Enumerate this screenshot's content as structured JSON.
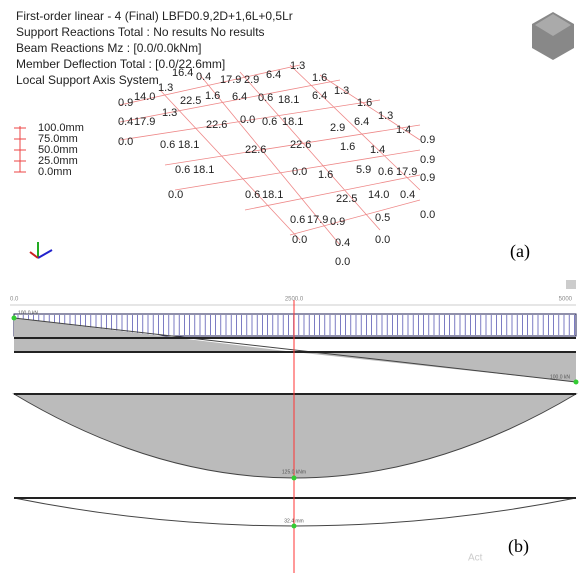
{
  "panel_a": {
    "header": [
      "First-order linear - 4 (Final) LBFD0.9,2D+1,6L+0,5Lr",
      "Support Reactions Total : No results No results",
      "Beam Reactions Mz : [0.0/0.0kNm]",
      "Member Deflection Total : [0.0/22.6mm]",
      "Local Support Axis System"
    ],
    "legend": [
      "100.0mm",
      "75.0mm",
      "50.0mm",
      "25.0mm",
      "0.0mm"
    ],
    "node_labels": [
      "0.9",
      "14.0",
      "1.3",
      "16.4",
      "0.4",
      "17.9",
      "2.9",
      "6.4",
      "1.3",
      "1.6",
      "0.4",
      "17.9",
      "1.3",
      "22.5",
      "1.6",
      "6.4",
      "0.6",
      "18.1",
      "6.4",
      "1.3",
      "1.6",
      "0.0",
      "0.6",
      "18.1",
      "22.6",
      "0.0",
      "0.6",
      "18.1",
      "2.9",
      "6.4",
      "1.3",
      "0.6",
      "18.1",
      "22.6",
      "22.6",
      "1.6",
      "1.4",
      "1.4",
      "0.9",
      "0.6",
      "18.1",
      "0.0",
      "1.6",
      "5.9",
      "0.6",
      "17.9",
      "0.9",
      "0.9",
      "0.6",
      "17.9",
      "22.5",
      "14.0",
      "0.4",
      "0.0",
      "0.0",
      "0.0",
      "0.4",
      "0.0",
      "0.0",
      "0.9",
      "0.5"
    ],
    "label": "(a)"
  },
  "panel_b": {
    "ruler": [
      "0.0",
      "2500.0",
      "5000"
    ],
    "shear_labels": [
      "100.0 kN",
      "100.0 kN"
    ],
    "moment_label": "125.0 kNm",
    "deflection_label": "32.4 mm",
    "watermark": "Act",
    "label": "(b)"
  }
}
